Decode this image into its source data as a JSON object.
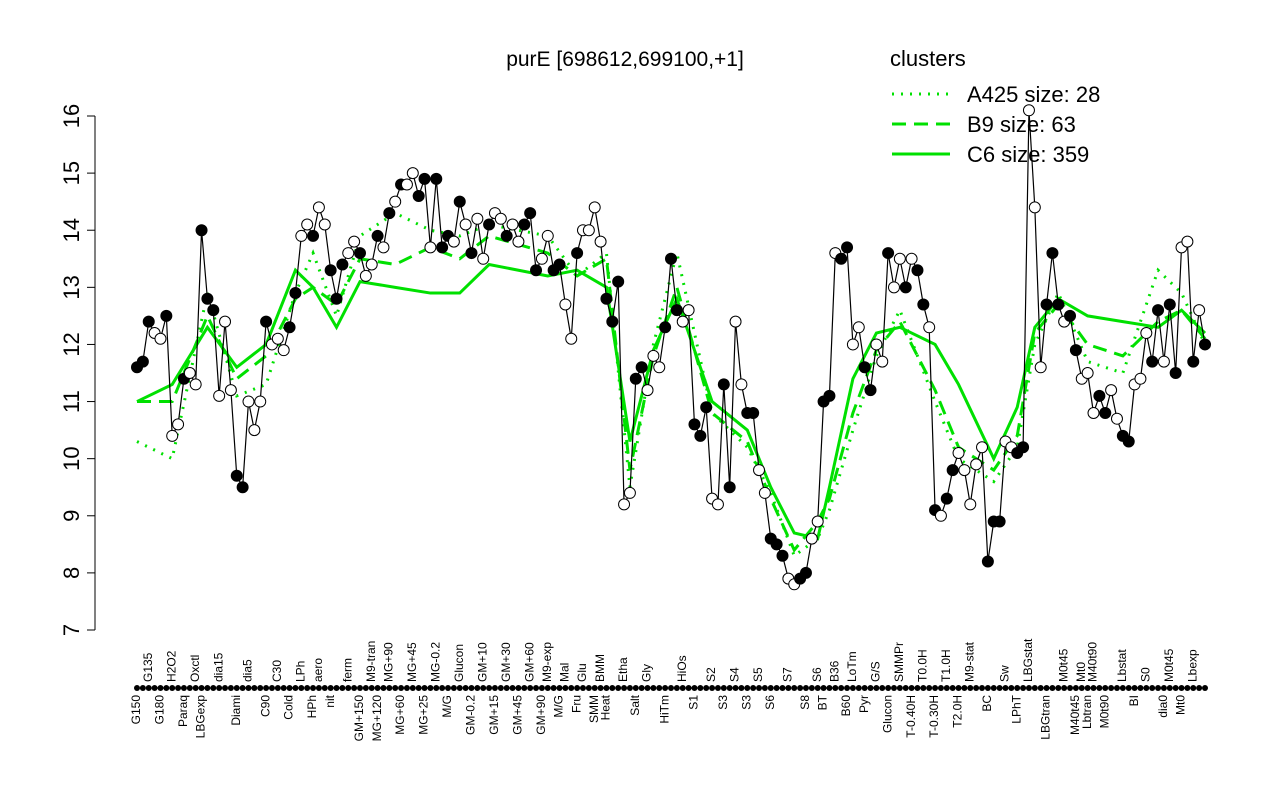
{
  "chart_data": {
    "type": "line",
    "title": "purE [698612,699100,+1]",
    "legend_title": "clusters",
    "legend_position": "top-right",
    "ylim": [
      7,
      16
    ],
    "yticks": [
      7,
      8,
      9,
      10,
      11,
      12,
      13,
      14,
      15,
      16
    ],
    "categories": [
      "G150",
      null,
      "G135",
      null,
      "G180",
      null,
      "H2O2",
      null,
      "Paraq",
      null,
      "Oxctl",
      "LBGexp",
      null,
      null,
      "dia15",
      null,
      null,
      "Diami",
      null,
      "dia5",
      null,
      null,
      "C90",
      null,
      "C30",
      null,
      "Cold",
      null,
      "LPh",
      null,
      "HPh",
      "aero",
      null,
      "nit",
      null,
      null,
      "ferm",
      null,
      "GM+150",
      null,
      "M9-tran",
      "MG+120",
      null,
      "MG+90",
      null,
      "MG+60",
      null,
      "MG+45",
      null,
      "MG+25",
      null,
      "MG-0.2",
      null,
      "M/G",
      null,
      "Glucon",
      null,
      "GM-0.2",
      null,
      "GM+10",
      null,
      "GM+15",
      null,
      "GM+30",
      null,
      "GM+45",
      null,
      "GM+60",
      null,
      "GM+90",
      "M9-exp",
      null,
      "M/G",
      "Mal",
      null,
      "Fru",
      "Glu",
      null,
      "SMM",
      "BMM",
      "Heat",
      null,
      null,
      "Etha",
      null,
      "Salt",
      null,
      "Gly",
      null,
      null,
      "HiTm",
      null,
      null,
      "HiOs",
      null,
      "S1",
      null,
      null,
      "S2",
      null,
      "S3",
      null,
      "S4",
      null,
      "S3",
      null,
      "S5",
      null,
      "S6",
      null,
      null,
      "S7",
      null,
      null,
      "S8",
      null,
      "S6",
      "BT",
      null,
      "B36",
      null,
      "B60",
      "LoTm",
      null,
      "Pyr",
      null,
      "G/S",
      null,
      "Glucon",
      null,
      "SMMPr",
      null,
      "T-0.40H",
      null,
      "T0.0H",
      null,
      "T-0.30H",
      null,
      "T1.0H",
      null,
      "T2.0H",
      null,
      "M9-stat",
      null,
      null,
      "BC",
      null,
      null,
      "Sw",
      null,
      "LPhT",
      null,
      "LBGstat",
      null,
      null,
      "LBGtran",
      null,
      null,
      "M0t45",
      null,
      "M40t45",
      "Mt0",
      "Lbtran",
      "M40t90",
      null,
      "M0t90",
      null,
      null,
      "Lbstat",
      null,
      "BI",
      null,
      "S0",
      null,
      null,
      "dia0",
      "M0t45",
      null,
      "Mt0",
      null,
      "Lbexp",
      null,
      null
    ],
    "values": [
      11.6,
      11.7,
      12.4,
      12.2,
      12.1,
      12.5,
      10.4,
      10.6,
      11.4,
      11.5,
      11.3,
      14.0,
      12.8,
      12.6,
      11.1,
      12.4,
      11.2,
      9.7,
      9.5,
      11.0,
      10.5,
      11.0,
      12.4,
      12.0,
      12.1,
      11.9,
      12.3,
      12.9,
      13.9,
      14.1,
      13.9,
      14.4,
      14.1,
      13.3,
      12.8,
      13.4,
      13.6,
      13.8,
      13.6,
      13.2,
      13.4,
      13.9,
      13.7,
      14.3,
      14.5,
      14.8,
      14.8,
      15.0,
      14.6,
      14.9,
      13.7,
      14.9,
      13.7,
      13.9,
      13.8,
      14.5,
      14.1,
      13.6,
      14.2,
      13.5,
      14.1,
      14.3,
      14.2,
      13.9,
      14.1,
      13.8,
      14.1,
      14.3,
      13.3,
      13.5,
      13.9,
      13.3,
      13.4,
      12.7,
      12.1,
      13.6,
      14.0,
      14.0,
      14.4,
      13.8,
      12.8,
      12.4,
      13.1,
      9.2,
      9.4,
      11.4,
      11.6,
      11.2,
      11.8,
      11.6,
      12.3,
      13.5,
      12.6,
      12.4,
      12.6,
      10.6,
      10.4,
      10.9,
      9.3,
      9.2,
      11.3,
      9.5,
      12.4,
      11.3,
      10.8,
      10.8,
      9.8,
      9.4,
      8.6,
      8.5,
      8.3,
      7.9,
      7.8,
      7.9,
      8.0,
      8.6,
      8.9,
      11.0,
      11.1,
      13.6,
      13.5,
      13.7,
      12.0,
      12.3,
      11.6,
      11.2,
      12.0,
      11.7,
      13.6,
      13.0,
      13.5,
      13.0,
      13.5,
      13.3,
      12.7,
      12.3,
      9.1,
      9.0,
      9.3,
      9.8,
      10.1,
      9.8,
      9.2,
      9.9,
      10.2,
      8.2,
      8.9,
      8.9,
      10.3,
      10.2,
      10.1,
      10.2,
      16.1,
      14.4,
      11.6,
      12.7,
      13.6,
      12.7,
      12.4,
      12.5,
      11.9,
      11.4,
      11.5,
      10.8,
      11.1,
      10.8,
      11.2,
      10.7,
      10.4,
      10.3,
      11.3,
      11.4,
      12.2,
      11.7,
      12.6,
      11.7,
      12.7,
      11.5,
      13.7,
      13.8,
      11.7,
      12.6,
      12.0
    ],
    "filled": [
      1,
      1,
      1,
      0,
      0,
      1,
      0,
      0,
      1,
      0,
      0,
      1,
      1,
      1,
      0,
      0,
      0,
      1,
      1,
      0,
      0,
      0,
      1,
      0,
      0,
      0,
      1,
      1,
      0,
      0,
      1,
      0,
      0,
      1,
      1,
      1,
      0,
      0,
      1,
      0,
      0,
      1,
      0,
      1,
      0,
      1,
      0,
      0,
      1,
      1,
      0,
      1,
      1,
      1,
      0,
      1,
      0,
      1,
      0,
      0,
      1,
      0,
      0,
      1,
      0,
      0,
      1,
      1,
      1,
      0,
      0,
      1,
      1,
      0,
      0,
      1,
      0,
      0,
      0,
      0,
      1,
      1,
      1,
      0,
      0,
      1,
      1,
      0,
      0,
      0,
      1,
      1,
      1,
      0,
      0,
      1,
      1,
      1,
      0,
      0,
      1,
      1,
      0,
      0,
      1,
      1,
      0,
      0,
      1,
      1,
      1,
      0,
      0,
      1,
      1,
      0,
      0,
      1,
      1,
      0,
      1,
      1,
      0,
      0,
      1,
      1,
      0,
      0,
      1,
      0,
      0,
      1,
      0,
      1,
      1,
      0,
      1,
      0,
      1,
      1,
      0,
      0,
      0,
      0,
      0,
      1,
      1,
      1,
      0,
      0,
      1,
      1,
      0,
      0,
      0,
      1,
      1,
      1,
      0,
      1,
      1,
      0,
      0,
      0,
      1,
      1,
      0,
      0,
      1,
      1,
      0,
      0,
      0,
      1,
      1,
      0,
      1,
      1,
      0,
      0,
      1,
      0,
      1
    ],
    "color": "#000000",
    "series": [
      {
        "name": "A425 size: 28",
        "color": "#00e000",
        "dash": "dotted",
        "x": [
          0,
          6,
          12,
          17,
          22,
          27,
          30,
          34,
          38,
          44,
          50,
          55,
          60,
          70,
          75,
          80,
          84,
          88,
          92,
          98,
          104,
          108,
          112,
          116,
          118,
          122,
          126,
          130,
          136,
          140,
          146,
          150,
          153,
          157,
          162,
          168,
          174,
          178,
          182
        ],
        "values": [
          10.3,
          10.0,
          12.9,
          11.1,
          11.3,
          12.9,
          13.6,
          12.5,
          13.9,
          14.3,
          14.0,
          13.9,
          14.1,
          13.9,
          13.2,
          13.6,
          9.5,
          12.0,
          13.6,
          10.8,
          10.2,
          9.4,
          8.3,
          8.6,
          9.1,
          10.5,
          11.8,
          12.6,
          11.0,
          10.0,
          9.6,
          10.2,
          12.0,
          12.9,
          11.7,
          11.5,
          13.3,
          12.9,
          12.0
        ]
      },
      {
        "name": "B9 size: 63",
        "color": "#00e000",
        "dash": "dashed",
        "x": [
          0,
          6,
          12,
          17,
          22,
          27,
          30,
          34,
          38,
          44,
          50,
          55,
          60,
          70,
          75,
          80,
          84,
          88,
          92,
          98,
          104,
          108,
          112,
          116,
          118,
          122,
          126,
          130,
          136,
          140,
          146,
          150,
          153,
          157,
          162,
          168,
          174,
          178,
          182
        ],
        "values": [
          11.0,
          11.0,
          12.5,
          11.4,
          11.8,
          12.8,
          13.0,
          12.7,
          13.5,
          13.4,
          13.7,
          13.5,
          13.9,
          13.6,
          13.2,
          13.5,
          9.8,
          11.8,
          13.0,
          10.8,
          10.3,
          9.3,
          8.4,
          8.9,
          9.3,
          10.8,
          11.9,
          12.4,
          11.2,
          10.2,
          9.8,
          10.4,
          12.2,
          12.7,
          12.0,
          11.8,
          12.4,
          12.6,
          12.1
        ]
      },
      {
        "name": "C6 size: 359",
        "color": "#00e000",
        "dash": "solid",
        "x": [
          0,
          6,
          12,
          17,
          22,
          27,
          30,
          34,
          38,
          44,
          50,
          55,
          60,
          70,
          75,
          80,
          84,
          88,
          92,
          98,
          104,
          108,
          112,
          116,
          118,
          122,
          126,
          130,
          136,
          140,
          146,
          150,
          153,
          157,
          162,
          168,
          174,
          178,
          182
        ],
        "values": [
          11.0,
          11.3,
          12.3,
          11.6,
          12.0,
          13.3,
          13.0,
          12.3,
          13.1,
          13.0,
          12.9,
          12.9,
          13.4,
          13.2,
          13.3,
          13.0,
          10.3,
          11.9,
          12.8,
          11.0,
          10.5,
          9.5,
          8.7,
          8.6,
          9.5,
          11.4,
          12.2,
          12.3,
          12.0,
          11.3,
          10.0,
          10.9,
          12.3,
          12.8,
          12.5,
          12.4,
          12.3,
          12.6,
          12.2
        ]
      }
    ]
  }
}
